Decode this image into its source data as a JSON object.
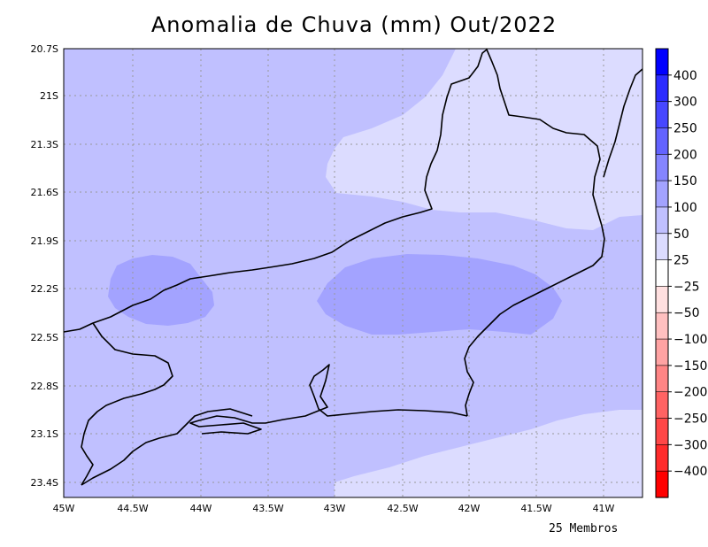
{
  "title": "Anomalia de Chuva (mm) Out/2022",
  "footer_note": "25 Membros",
  "axes": {
    "lon_ticks": [
      "45W",
      "44.5W",
      "44W",
      "43.5W",
      "43W",
      "42.5W",
      "42W",
      "41.5W",
      "41W"
    ],
    "lat_ticks": [
      "20.7S",
      "21S",
      "21.3S",
      "21.6S",
      "21.9S",
      "22.2S",
      "22.5S",
      "22.8S",
      "23.1S",
      "23.4S"
    ],
    "lon_range": [
      -45,
      -40.7
    ],
    "lat_range": [
      -23.5,
      -20.7
    ],
    "grid": true
  },
  "colorbar": {
    "labels": [
      "400",
      "300",
      "250",
      "200",
      "150",
      "100",
      "50",
      "25",
      "−25",
      "−50",
      "−100",
      "−150",
      "−200",
      "−250",
      "−300",
      "−400"
    ],
    "colors": [
      "#0000ff",
      "#2b2bff",
      "#4747ff",
      "#6363ff",
      "#8585ff",
      "#a3a3ff",
      "#c0c0ff",
      "#dcdcff",
      "#ffffff",
      "#ffe0e0",
      "#ffc0c0",
      "#ffa3a3",
      "#ff8585",
      "#ff6363",
      "#ff4747",
      "#ff2b2b",
      "#ff0000"
    ]
  },
  "fill_colors": {
    "band_50_100": "#c0c0ff",
    "band_100_150": "#a3a3ff",
    "band_25_50": "#dcdcff"
  }
}
